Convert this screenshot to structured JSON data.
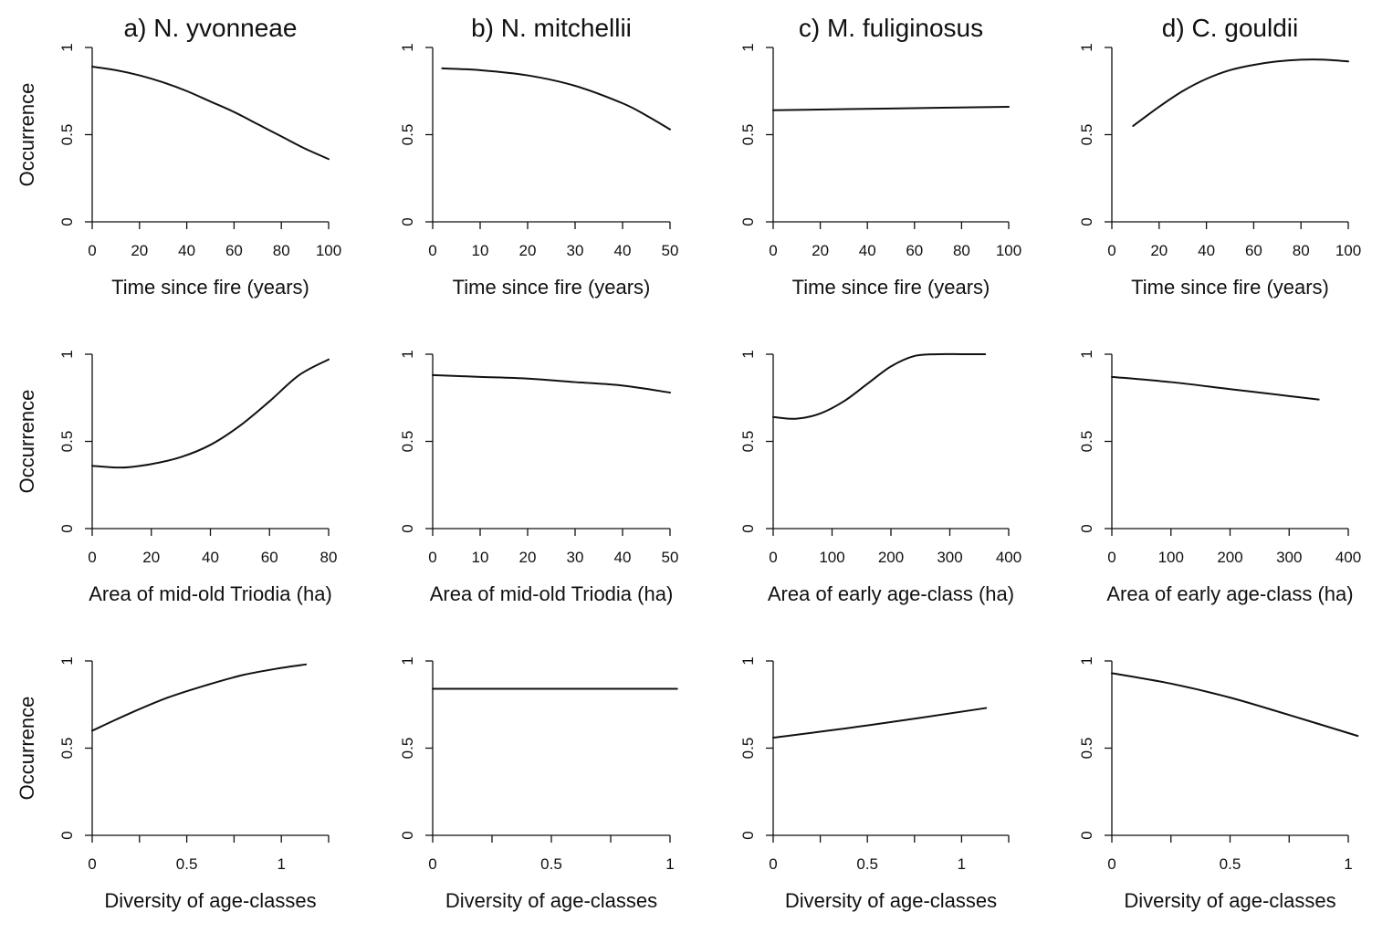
{
  "chart_data": [
    {
      "type": "line",
      "row": 0,
      "col": 0,
      "title": "a) N. yvonneae",
      "xlabel": "Time since fire (years)",
      "ylabel": "Occurrence",
      "xlim": [
        0,
        100
      ],
      "xticks": [
        0,
        20,
        40,
        60,
        80,
        100
      ],
      "xticklabels": [
        "0",
        "20",
        "40",
        "60",
        "80",
        "100"
      ],
      "ylim": [
        0,
        1
      ],
      "yticks": [
        0,
        0.5,
        1
      ],
      "yticklabels": [
        "0",
        "0.5",
        "1"
      ],
      "x": [
        0,
        10,
        20,
        30,
        40,
        50,
        60,
        70,
        80,
        90,
        100
      ],
      "y": [
        0.89,
        0.87,
        0.84,
        0.8,
        0.75,
        0.69,
        0.63,
        0.56,
        0.49,
        0.42,
        0.36
      ]
    },
    {
      "type": "line",
      "row": 0,
      "col": 1,
      "title": "b) N. mitchellii",
      "xlabel": "Time since fire (years)",
      "ylabel": "",
      "xlim": [
        0,
        50
      ],
      "xticks": [
        0,
        10,
        20,
        30,
        40,
        50
      ],
      "xticklabels": [
        "0",
        "10",
        "20",
        "30",
        "40",
        "50"
      ],
      "ylim": [
        0,
        1
      ],
      "yticks": [
        0,
        0.5,
        1
      ],
      "yticklabels": [
        "0",
        "0.5",
        "1"
      ],
      "x": [
        2,
        10,
        20,
        30,
        40,
        45,
        50
      ],
      "y": [
        0.88,
        0.87,
        0.84,
        0.78,
        0.68,
        0.61,
        0.53
      ]
    },
    {
      "type": "line",
      "row": 0,
      "col": 2,
      "title": "c) M. fuliginosus",
      "xlabel": "Time since fire (years)",
      "ylabel": "",
      "xlim": [
        0,
        100
      ],
      "xticks": [
        0,
        20,
        40,
        60,
        80,
        100
      ],
      "xticklabels": [
        "0",
        "20",
        "40",
        "60",
        "80",
        "100"
      ],
      "ylim": [
        0,
        1
      ],
      "yticks": [
        0,
        0.5,
        1
      ],
      "yticklabels": [
        "0",
        "0.5",
        "1"
      ],
      "x": [
        0,
        50,
        100
      ],
      "y": [
        0.64,
        0.65,
        0.66
      ]
    },
    {
      "type": "line",
      "row": 0,
      "col": 3,
      "title": "d) C. gouldii",
      "xlabel": "Time since fire (years)",
      "ylabel": "",
      "xlim": [
        0,
        100
      ],
      "xticks": [
        0,
        20,
        40,
        60,
        80,
        100
      ],
      "xticklabels": [
        "0",
        "20",
        "40",
        "60",
        "80",
        "100"
      ],
      "ylim": [
        0,
        1
      ],
      "yticks": [
        0,
        0.5,
        1
      ],
      "yticklabels": [
        "0",
        "0.5",
        "1"
      ],
      "x": [
        9,
        20,
        30,
        40,
        50,
        60,
        70,
        80,
        90,
        100
      ],
      "y": [
        0.55,
        0.66,
        0.75,
        0.82,
        0.87,
        0.9,
        0.92,
        0.93,
        0.93,
        0.92
      ]
    },
    {
      "type": "line",
      "row": 1,
      "col": 0,
      "title": "",
      "xlabel": "Area of mid-old Triodia (ha)",
      "ylabel": "Occurrence",
      "xlim": [
        0,
        80
      ],
      "xticks": [
        0,
        20,
        40,
        60,
        80
      ],
      "xticklabels": [
        "0",
        "20",
        "40",
        "60",
        "80"
      ],
      "ylim": [
        0,
        1
      ],
      "yticks": [
        0,
        0.5,
        1
      ],
      "yticklabels": [
        "0",
        "0.5",
        "1"
      ],
      "x": [
        0,
        10,
        20,
        30,
        40,
        50,
        60,
        70,
        80
      ],
      "y": [
        0.36,
        0.35,
        0.37,
        0.41,
        0.48,
        0.59,
        0.73,
        0.88,
        0.97
      ]
    },
    {
      "type": "line",
      "row": 1,
      "col": 1,
      "title": "",
      "xlabel": "Area of mid-old Triodia (ha)",
      "ylabel": "",
      "xlim": [
        0,
        50
      ],
      "xticks": [
        0,
        10,
        20,
        30,
        40,
        50
      ],
      "xticklabels": [
        "0",
        "10",
        "20",
        "30",
        "40",
        "50"
      ],
      "ylim": [
        0,
        1
      ],
      "yticks": [
        0,
        0.5,
        1
      ],
      "yticklabels": [
        "0",
        "0.5",
        "1"
      ],
      "x": [
        0,
        10,
        20,
        30,
        40,
        50
      ],
      "y": [
        0.88,
        0.87,
        0.86,
        0.84,
        0.82,
        0.78
      ]
    },
    {
      "type": "line",
      "row": 1,
      "col": 2,
      "title": "",
      "xlabel": "Area of early age-class (ha)",
      "ylabel": "",
      "xlim": [
        0,
        400
      ],
      "xticks": [
        0,
        100,
        200,
        300,
        400
      ],
      "xticklabels": [
        "0",
        "100",
        "200",
        "300",
        "400"
      ],
      "ylim": [
        0,
        1
      ],
      "yticks": [
        0,
        0.5,
        1
      ],
      "yticklabels": [
        "0",
        "0.5",
        "1"
      ],
      "x": [
        0,
        40,
        80,
        120,
        160,
        200,
        240,
        280,
        320,
        360
      ],
      "y": [
        0.64,
        0.63,
        0.66,
        0.73,
        0.83,
        0.93,
        0.99,
        1.0,
        1.0,
        1.0
      ]
    },
    {
      "type": "line",
      "row": 1,
      "col": 3,
      "title": "",
      "xlabel": "Area of early age-class (ha)",
      "ylabel": "",
      "xlim": [
        0,
        400
      ],
      "xticks": [
        0,
        100,
        200,
        300,
        400
      ],
      "xticklabels": [
        "0",
        "100",
        "200",
        "300",
        "400"
      ],
      "ylim": [
        0,
        1
      ],
      "yticks": [
        0,
        0.5,
        1
      ],
      "yticklabels": [
        "0",
        "0.5",
        "1"
      ],
      "x": [
        0,
        100,
        200,
        300,
        350
      ],
      "y": [
        0.87,
        0.84,
        0.8,
        0.76,
        0.74
      ]
    },
    {
      "type": "line",
      "row": 2,
      "col": 0,
      "title": "",
      "xlabel": "Diversity of age-classes",
      "ylabel": "Occurrence",
      "xlim": [
        0,
        1.25
      ],
      "xticks": [
        0,
        0.25,
        0.5,
        0.75,
        1,
        1.25
      ],
      "xticklabels": [
        "0",
        "",
        "0.5",
        "",
        "1",
        ""
      ],
      "ylim": [
        0,
        1
      ],
      "yticks": [
        0,
        0.5,
        1
      ],
      "yticklabels": [
        "0",
        "0.5",
        "1"
      ],
      "x": [
        0,
        0.2,
        0.4,
        0.6,
        0.8,
        1.0,
        1.13
      ],
      "y": [
        0.6,
        0.7,
        0.79,
        0.86,
        0.92,
        0.96,
        0.98
      ]
    },
    {
      "type": "line",
      "row": 2,
      "col": 1,
      "title": "",
      "xlabel": "Diversity of age-classes",
      "ylabel": "",
      "xlim": [
        0,
        1
      ],
      "xticks": [
        0,
        0.25,
        0.5,
        0.75,
        1
      ],
      "xticklabels": [
        "0",
        "",
        "0.5",
        "",
        "1"
      ],
      "ylim": [
        0,
        1
      ],
      "yticks": [
        0,
        0.5,
        1
      ],
      "yticklabels": [
        "0",
        "0.5",
        "1"
      ],
      "x": [
        0,
        1.03
      ],
      "y": [
        0.84,
        0.84
      ]
    },
    {
      "type": "line",
      "row": 2,
      "col": 2,
      "title": "",
      "xlabel": "Diversity of age-classes",
      "ylabel": "",
      "xlim": [
        0,
        1.25
      ],
      "xticks": [
        0,
        0.25,
        0.5,
        0.75,
        1,
        1.25
      ],
      "xticklabels": [
        "0",
        "",
        "0.5",
        "",
        "1",
        ""
      ],
      "ylim": [
        0,
        1
      ],
      "yticks": [
        0,
        0.5,
        1
      ],
      "yticklabels": [
        "0",
        "0.5",
        "1"
      ],
      "x": [
        0,
        0.5,
        1.13
      ],
      "y": [
        0.56,
        0.63,
        0.73
      ]
    },
    {
      "type": "line",
      "row": 2,
      "col": 3,
      "title": "",
      "xlabel": "Diversity of age-classes",
      "ylabel": "",
      "xlim": [
        0,
        1
      ],
      "xticks": [
        0,
        0.25,
        0.5,
        0.75,
        1
      ],
      "xticklabels": [
        "0",
        "",
        "0.5",
        "",
        "1"
      ],
      "ylim": [
        0,
        1
      ],
      "yticks": [
        0,
        0.5,
        1
      ],
      "yticklabels": [
        "0",
        "0.5",
        "1"
      ],
      "x": [
        0,
        0.25,
        0.5,
        0.75,
        1.04
      ],
      "y": [
        0.93,
        0.87,
        0.79,
        0.69,
        0.57
      ]
    }
  ]
}
